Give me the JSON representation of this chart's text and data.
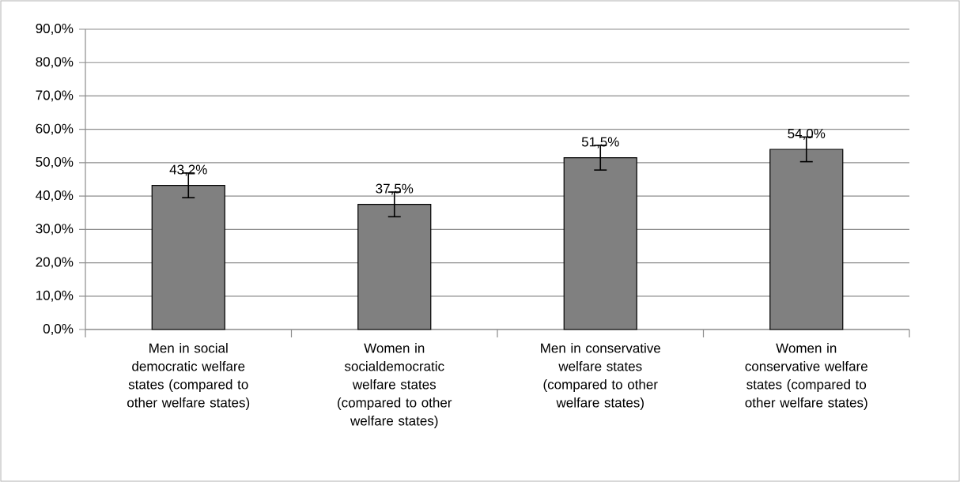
{
  "chart_data": {
    "type": "bar",
    "categories": [
      "Men in social democratic welfare states (compared to other welfare states)",
      "Women in socialdemocratic welfare states (compared to other welfare states)",
      "Men in conservative welfare states (compared to other welfare states)",
      "Women in conservative welfare states (compared to other welfare states)"
    ],
    "values": [
      43.2,
      37.5,
      51.5,
      54.0
    ],
    "errors": [
      3.7,
      3.7,
      3.7,
      3.7
    ],
    "value_labels": [
      "43,2%",
      "37,5%",
      "51,5%",
      "54,0%"
    ],
    "color": "#808080",
    "ylim": [
      0,
      90
    ],
    "yticks": [
      {
        "value": 0,
        "label": "0,0%"
      },
      {
        "value": 10,
        "label": "10,0%"
      },
      {
        "value": 20,
        "label": "20,0%"
      },
      {
        "value": 30,
        "label": "30,0%"
      },
      {
        "value": 40,
        "label": "40,0%"
      },
      {
        "value": 50,
        "label": "50,0%"
      },
      {
        "value": 60,
        "label": "60,0%"
      },
      {
        "value": 70,
        "label": "70,0%"
      },
      {
        "value": 80,
        "label": "80,0%"
      },
      {
        "value": 90,
        "label": "90,0%"
      }
    ],
    "grid": "y"
  }
}
